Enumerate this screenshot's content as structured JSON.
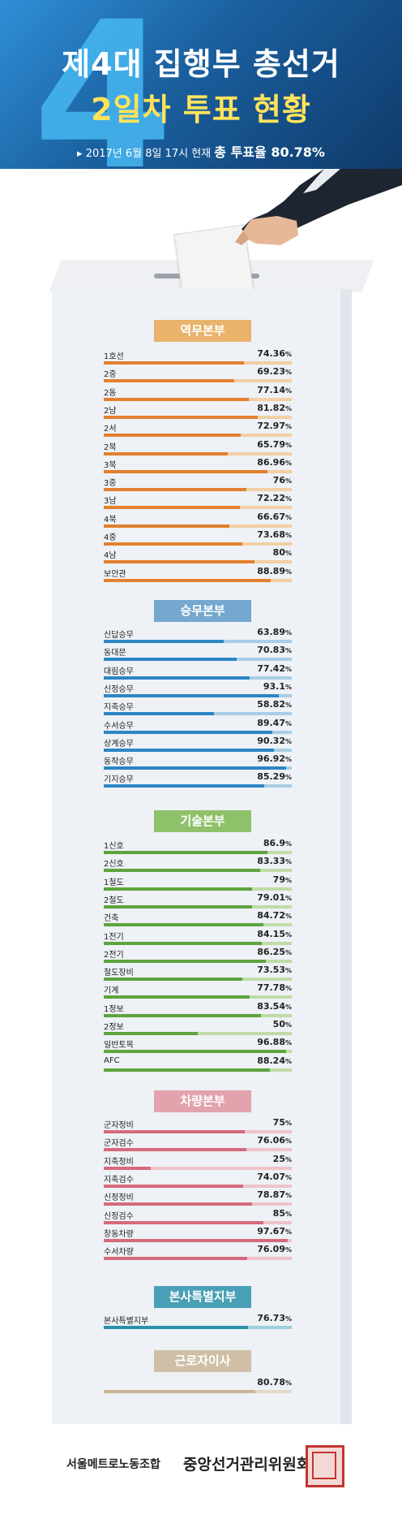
{
  "header": {
    "watermark_digit": "4",
    "title_line1": "제4대 집행부 총선거",
    "title_line2": "2일차 투표 현황",
    "subtitle_prefix": "2017년 6월 8일 17시 현재",
    "subtitle_emph": "총 투표율 80.78%"
  },
  "footer": {
    "union": "서울메트로노동조합",
    "committee": "중앙선거관리위원회"
  },
  "chart_data": {
    "type": "bar",
    "unit": "%",
    "xlim": [
      0,
      100
    ],
    "groups": [
      {
        "name": "역무본부",
        "color": "#e3802e",
        "label_color": "#e9b36b",
        "track_color": "#f2cfa4",
        "rows": [
          {
            "label": "1호선",
            "value": 74.36
          },
          {
            "label": "2중",
            "value": 69.23
          },
          {
            "label": "2동",
            "value": 77.14
          },
          {
            "label": "2남",
            "value": 81.82
          },
          {
            "label": "2서",
            "value": 72.97
          },
          {
            "label": "2북",
            "value": 65.79
          },
          {
            "label": "3북",
            "value": 86.96
          },
          {
            "label": "3중",
            "value": 76
          },
          {
            "label": "3남",
            "value": 72.22
          },
          {
            "label": "4북",
            "value": 66.67
          },
          {
            "label": "4중",
            "value": 73.68
          },
          {
            "label": "4남",
            "value": 80
          },
          {
            "label": "보안관",
            "value": 88.89
          }
        ]
      },
      {
        "name": "승무본부",
        "color": "#2c86c4",
        "label_color": "#74a8cf",
        "track_color": "#a9cde6",
        "rows": [
          {
            "label": "신답승무",
            "value": 63.89
          },
          {
            "label": "동대문",
            "value": 70.83
          },
          {
            "label": "대림승무",
            "value": 77.42
          },
          {
            "label": "신정승무",
            "value": 93.1
          },
          {
            "label": "지축승무",
            "value": 58.82
          },
          {
            "label": "수서승무",
            "value": 89.47
          },
          {
            "label": "상계승무",
            "value": 90.32
          },
          {
            "label": "동작승무",
            "value": 96.92
          },
          {
            "label": "기지승무",
            "value": 85.29
          }
        ]
      },
      {
        "name": "기술본부",
        "color": "#5da43e",
        "label_color": "#8fc16b",
        "track_color": "#bfdca8",
        "rows": [
          {
            "label": "1신호",
            "value": 86.9
          },
          {
            "label": "2신호",
            "value": 83.33
          },
          {
            "label": "1철도",
            "value": 79
          },
          {
            "label": "2철도",
            "value": 79.01
          },
          {
            "label": "건축",
            "value": 84.72
          },
          {
            "label": "1전기",
            "value": 84.15
          },
          {
            "label": "2전기",
            "value": 86.25
          },
          {
            "label": "철도장비",
            "value": 73.53
          },
          {
            "label": "기계",
            "value": 77.78
          },
          {
            "label": "1정보",
            "value": 83.54
          },
          {
            "label": "2정보",
            "value": 50
          },
          {
            "label": "일반토목",
            "value": 96.88
          },
          {
            "label": "AFC",
            "value": 88.24
          }
        ]
      },
      {
        "name": "차량본부",
        "color": "#d56a7c",
        "label_color": "#e3a3ad",
        "track_color": "#eec3ca",
        "rows": [
          {
            "label": "군자정비",
            "value": 75
          },
          {
            "label": "군자검수",
            "value": 76.06
          },
          {
            "label": "지축정비",
            "value": 25
          },
          {
            "label": "지축검수",
            "value": 74.07
          },
          {
            "label": "신정정비",
            "value": 78.87
          },
          {
            "label": "신정검수",
            "value": 85
          },
          {
            "label": "창동차량",
            "value": 97.67
          },
          {
            "label": "수서차량",
            "value": 76.09
          }
        ]
      },
      {
        "name": "본사특별지부",
        "color": "#2a8fa8",
        "label_color": "#4aa0b6",
        "track_color": "#9ccfdb",
        "rows": [
          {
            "label": "본사특별지부",
            "value": 76.73
          }
        ]
      },
      {
        "name": "근로자이사",
        "color": "#c9b596",
        "label_color": "#cfbfa6",
        "track_color": "#e3d9c9",
        "rows": [
          {
            "label": "",
            "value": 80.78
          }
        ]
      }
    ]
  }
}
